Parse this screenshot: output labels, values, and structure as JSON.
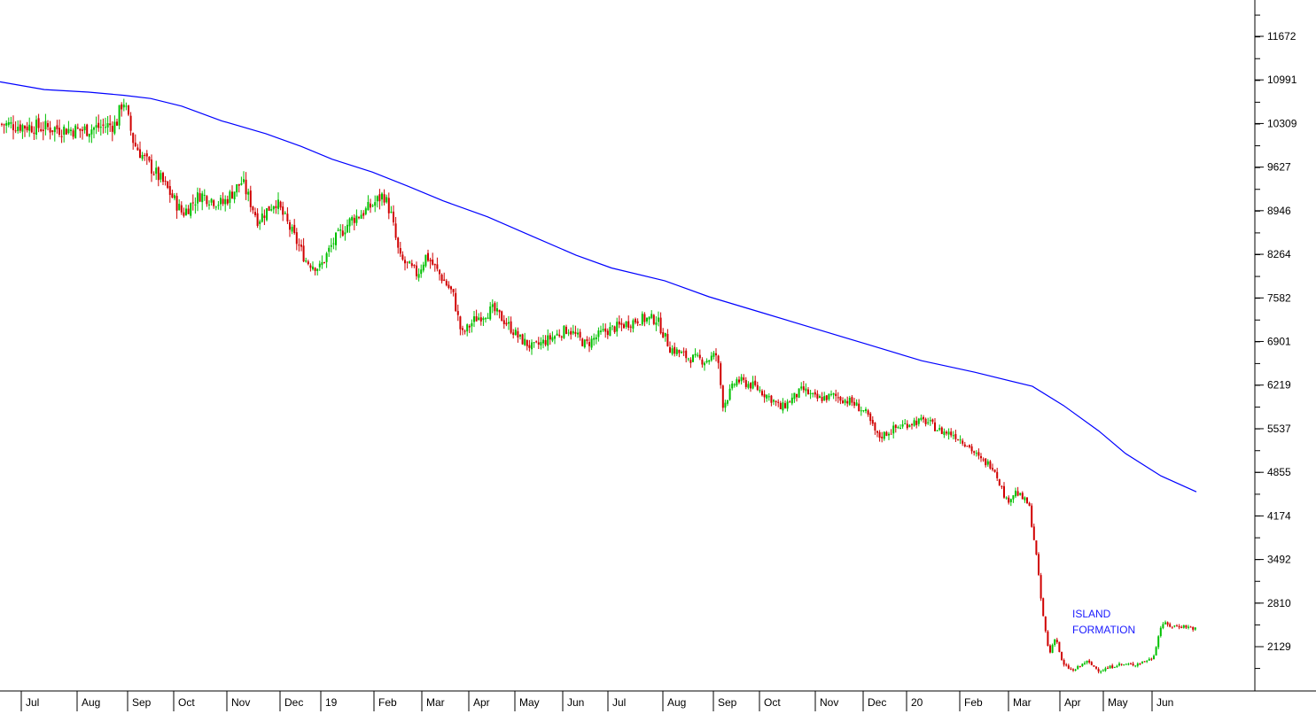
{
  "chart_data": {
    "type": "candlestick",
    "title": "",
    "xlabel": "",
    "ylabel": "",
    "ylim": [
      1600,
      12200
    ],
    "y_ticks": [
      2129,
      2810,
      3492,
      4174,
      4855,
      5537,
      6219,
      6901,
      7582,
      8264,
      8946,
      9627,
      10309,
      10991,
      11672
    ],
    "x_tick_labels": [
      "Jul",
      "Aug",
      "Sep",
      "Oct",
      "Nov",
      "Dec",
      "19",
      "Feb",
      "Mar",
      "Apr",
      "May",
      "Jun",
      "Jul",
      "Aug",
      "Sep",
      "Oct",
      "Nov",
      "Dec",
      "20",
      "Feb",
      "Mar",
      "Apr",
      "May",
      "Jun"
    ],
    "colors": {
      "up": "#00c000",
      "down": "#d00000",
      "moving_average": "#0000ff",
      "annotation": "#1a1aff"
    },
    "series": [
      {
        "type": "candlestick",
        "approximate_closes": [
          [
            0,
            10300
          ],
          [
            45,
            10250
          ],
          [
            90,
            10200
          ],
          [
            130,
            10300
          ],
          [
            138,
            10700
          ],
          [
            150,
            10000
          ],
          [
            165,
            9700
          ],
          [
            185,
            9350
          ],
          [
            205,
            8900
          ],
          [
            225,
            9200
          ],
          [
            250,
            9050
          ],
          [
            272,
            9400
          ],
          [
            290,
            8800
          ],
          [
            310,
            9100
          ],
          [
            325,
            8700
          ],
          [
            345,
            8150
          ],
          [
            360,
            8050
          ],
          [
            375,
            8450
          ],
          [
            395,
            8800
          ],
          [
            412,
            8950
          ],
          [
            432,
            9200
          ],
          [
            440,
            8900
          ],
          [
            450,
            8200
          ],
          [
            470,
            7950
          ],
          [
            480,
            8250
          ],
          [
            495,
            7950
          ],
          [
            510,
            7650
          ],
          [
            520,
            7000
          ],
          [
            535,
            7250
          ],
          [
            555,
            7400
          ],
          [
            570,
            7200
          ],
          [
            585,
            6950
          ],
          [
            600,
            6800
          ],
          [
            620,
            6950
          ],
          [
            640,
            7100
          ],
          [
            660,
            6850
          ],
          [
            680,
            7050
          ],
          [
            700,
            7150
          ],
          [
            720,
            7250
          ],
          [
            740,
            7250
          ],
          [
            755,
            6800
          ],
          [
            775,
            6650
          ],
          [
            795,
            6600
          ],
          [
            808,
            6700
          ],
          [
            815,
            5900
          ],
          [
            830,
            6300
          ],
          [
            850,
            6200
          ],
          [
            870,
            6000
          ],
          [
            880,
            5850
          ],
          [
            905,
            6150
          ],
          [
            920,
            6000
          ],
          [
            940,
            6050
          ],
          [
            960,
            5950
          ],
          [
            975,
            5800
          ],
          [
            990,
            5400
          ],
          [
            1010,
            5550
          ],
          [
            1030,
            5650
          ],
          [
            1045,
            5650
          ],
          [
            1060,
            5500
          ],
          [
            1075,
            5450
          ],
          [
            1090,
            5300
          ],
          [
            1105,
            5050
          ],
          [
            1120,
            4950
          ],
          [
            1135,
            4400
          ],
          [
            1145,
            4550
          ],
          [
            1160,
            4350
          ],
          [
            1168,
            3600
          ],
          [
            1175,
            2700
          ],
          [
            1183,
            2000
          ],
          [
            1190,
            2300
          ],
          [
            1198,
            1850
          ],
          [
            1210,
            1750
          ],
          [
            1225,
            1900
          ],
          [
            1240,
            1750
          ],
          [
            1260,
            1850
          ],
          [
            1280,
            1850
          ],
          [
            1300,
            1950
          ],
          [
            1310,
            2500
          ],
          [
            1320,
            2450
          ],
          [
            1335,
            2450
          ],
          [
            1350,
            2400
          ]
        ]
      },
      {
        "type": "line",
        "approximate_values": [
          [
            0,
            10960
          ],
          [
            50,
            10840
          ],
          [
            100,
            10800
          ],
          [
            140,
            10750
          ],
          [
            170,
            10700
          ],
          [
            205,
            10580
          ],
          [
            250,
            10350
          ],
          [
            300,
            10150
          ],
          [
            340,
            9950
          ],
          [
            375,
            9750
          ],
          [
            420,
            9550
          ],
          [
            460,
            9330
          ],
          [
            500,
            9100
          ],
          [
            550,
            8850
          ],
          [
            600,
            8550
          ],
          [
            650,
            8250
          ],
          [
            690,
            8050
          ],
          [
            750,
            7850
          ],
          [
            800,
            7600
          ],
          [
            860,
            7350
          ],
          [
            920,
            7100
          ],
          [
            980,
            6850
          ],
          [
            1040,
            6600
          ],
          [
            1100,
            6420
          ],
          [
            1165,
            6200
          ],
          [
            1200,
            5900
          ],
          [
            1240,
            5500
          ],
          [
            1270,
            5150
          ],
          [
            1310,
            4800
          ],
          [
            1350,
            4550
          ]
        ]
      }
    ],
    "annotations": [
      {
        "lines": [
          "ISLAND",
          "FORMATION"
        ]
      }
    ]
  }
}
